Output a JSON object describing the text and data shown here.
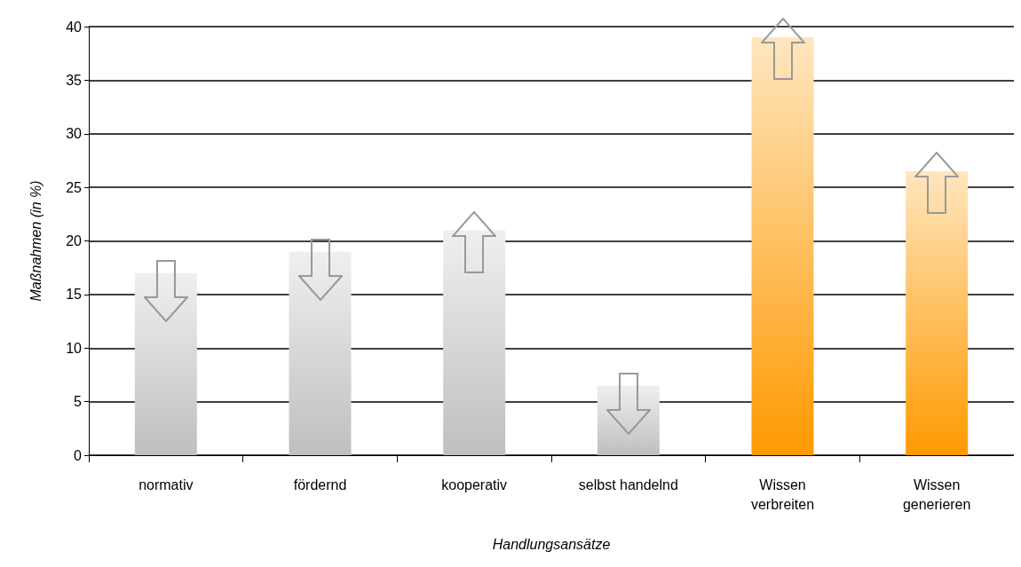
{
  "chart_data": {
    "type": "bar",
    "xlabel": "Handlungsansätze",
    "ylabel": "Maßnahmen (in %)",
    "categories": [
      "normativ",
      "fördernd",
      "kooperativ",
      "selbst handelnd",
      "Wissen\nverbreiten",
      "Wissen\ngenerieren"
    ],
    "values": [
      17,
      19,
      21,
      6.5,
      39,
      26.5
    ],
    "colors": [
      "#bfbfbf",
      "#bfbfbf",
      "#bfbfbf",
      "#bfbfbf",
      "#ff9900",
      "#ff9900"
    ],
    "ylim": [
      0,
      40
    ],
    "yticks": [
      0,
      5,
      10,
      15,
      20,
      25,
      30,
      35,
      40
    ],
    "grid": "y"
  }
}
